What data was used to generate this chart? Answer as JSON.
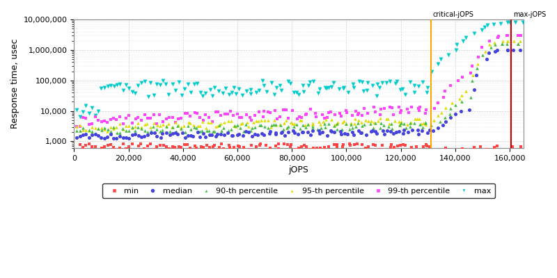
{
  "xlabel": "jOPS",
  "ylabel": "Response time, usec",
  "xlim": [
    0,
    165000
  ],
  "ylim_log": [
    600,
    10000000
  ],
  "critical_jops": 131000,
  "max_jops": 160500,
  "critical_label": "critical-jOPS",
  "max_label": "max-jOPS",
  "critical_color": "#FFA500",
  "max_color": "#CC0000",
  "bg_color": "#FFFFFF",
  "grid_color": "#CCCCCC",
  "series_colors": {
    "min": "#FF4444",
    "median": "#4444DD",
    "p90": "#44BB44",
    "p95": "#DDDD00",
    "p99": "#FF44FF",
    "max": "#00CCCC"
  },
  "legend_labels": {
    "min": "min",
    "median": "median",
    "p90": "90-th percentile",
    "p95": "95-th percentile",
    "p99": "99-th percentile",
    "max": "max"
  }
}
